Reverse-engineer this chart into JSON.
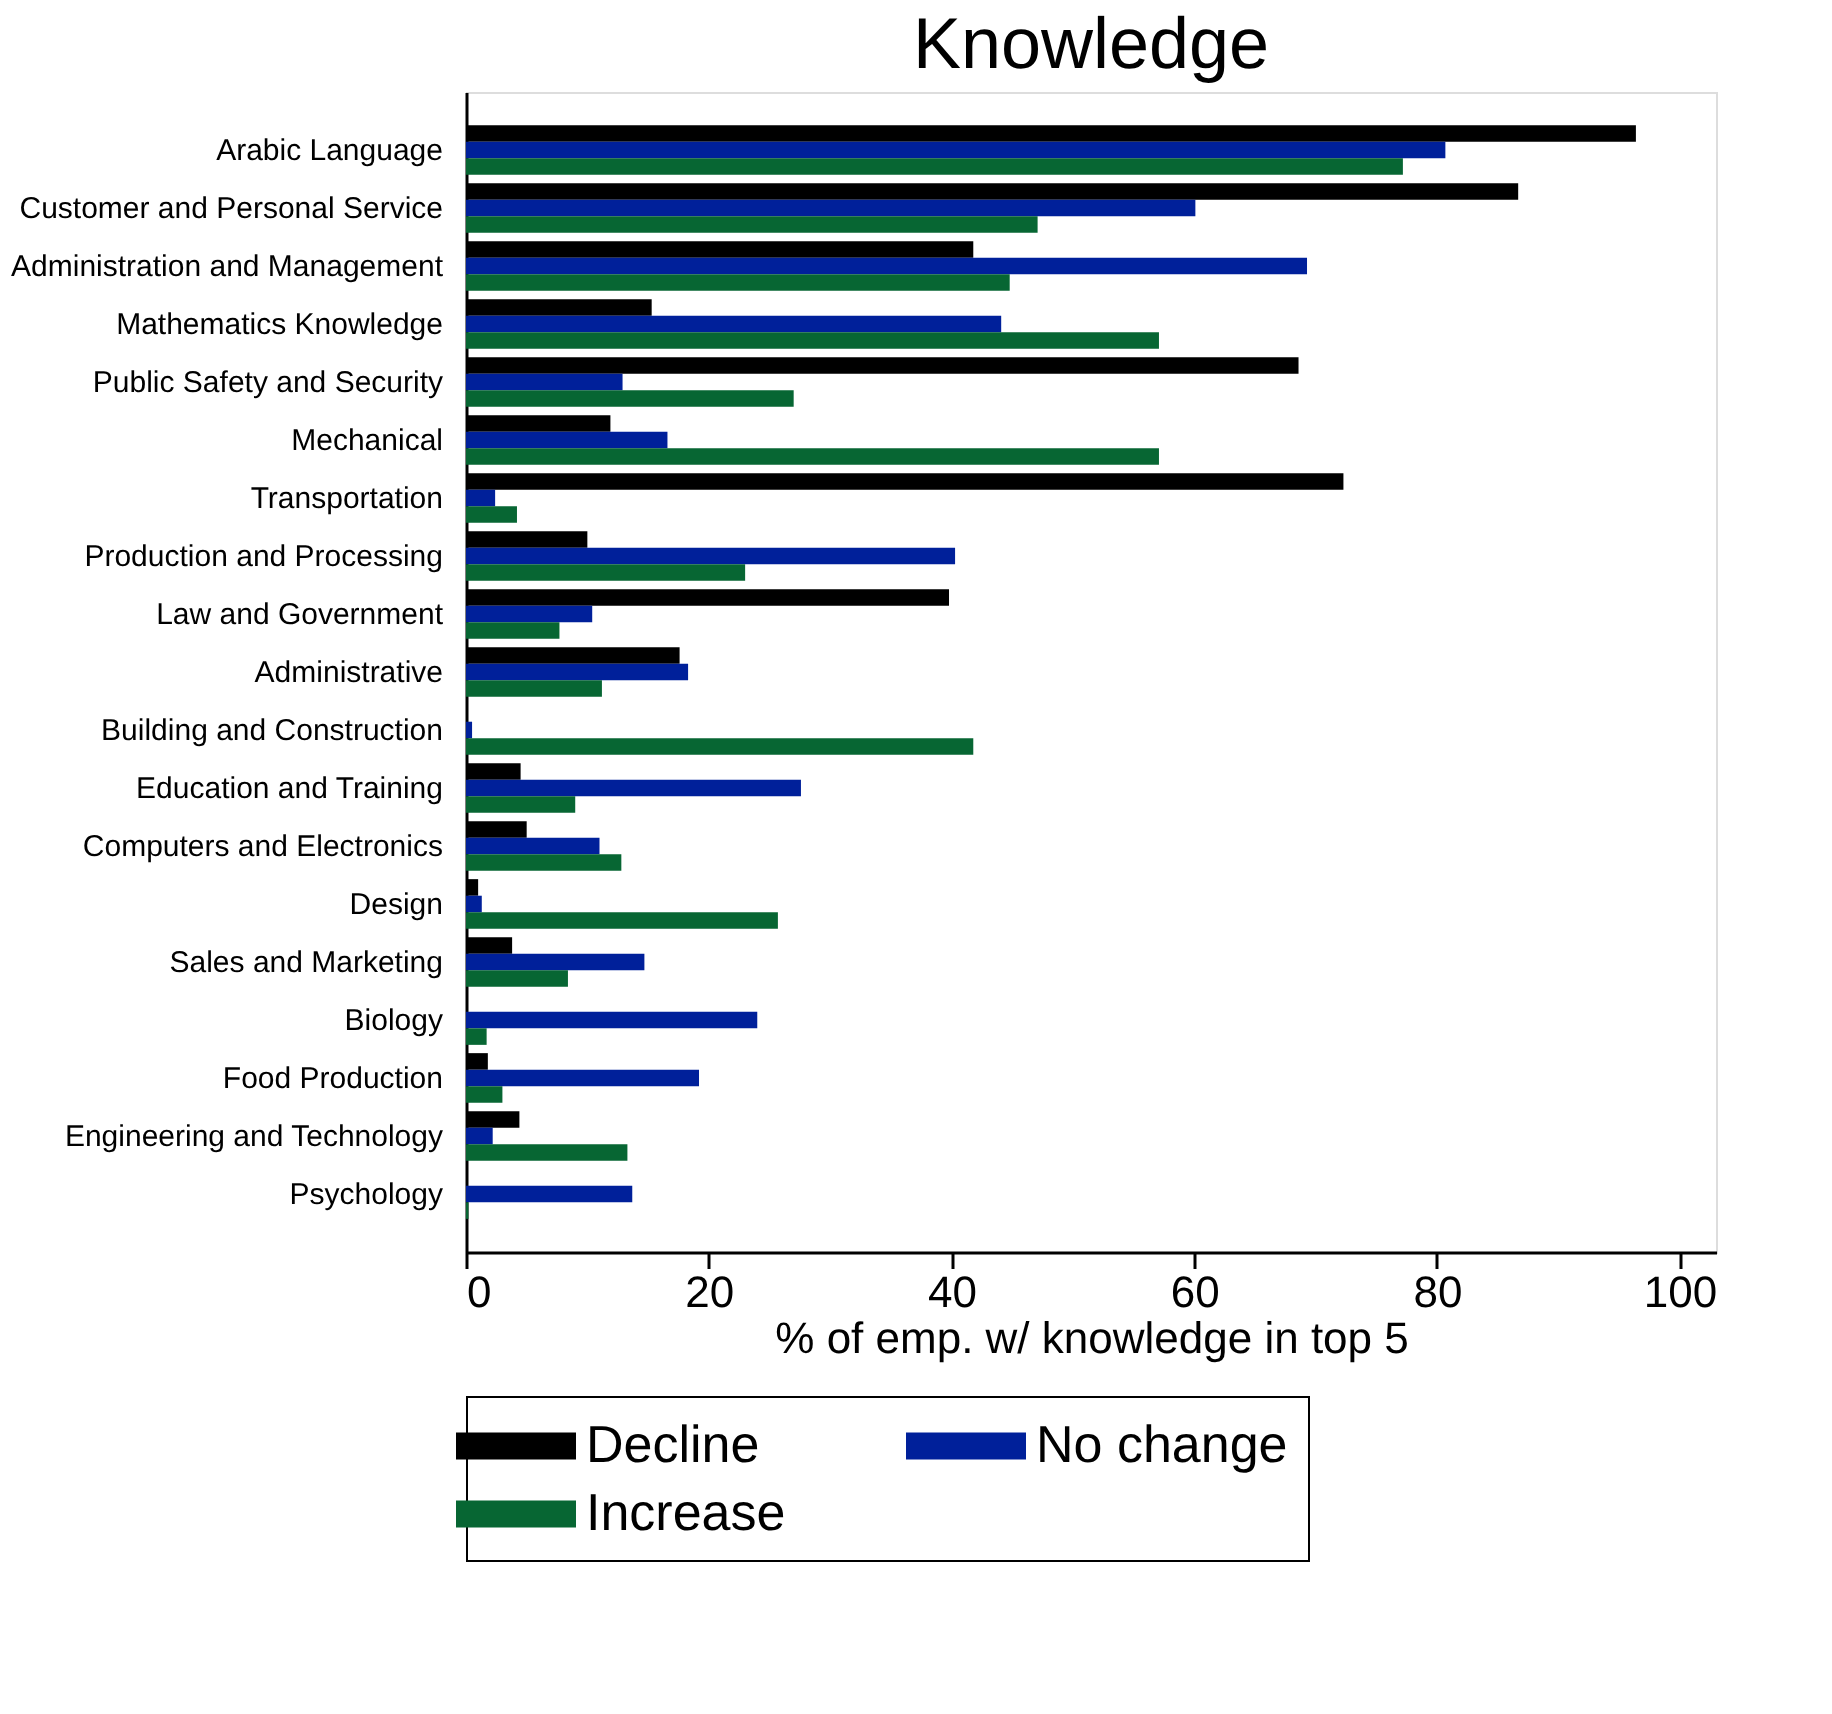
{
  "chart_data": {
    "type": "bar",
    "orientation": "horizontal",
    "title": "Knowledge",
    "xlabel": "% of emp. w/ knowledge in top 5",
    "categories": [
      "Arabic Language",
      "Customer and Personal Service",
      "Administration and Management",
      "Mathematics Knowledge",
      "Public Safety and Security",
      "Mechanical",
      "Transportation",
      "Production and Processing",
      "Law and Government",
      "Administrative",
      "Building and Construction",
      "Education and Training",
      "Computers and Electronics",
      "Design",
      "Sales and Marketing",
      "Biology",
      "Food Production",
      "Engineering and Technology",
      "Psychology"
    ],
    "series": [
      {
        "name": "Decline",
        "color": "#000000",
        "values": [
          96.4,
          86.7,
          41.8,
          15.3,
          68.6,
          11.9,
          72.3,
          10.0,
          39.8,
          17.6,
          null,
          4.5,
          5.0,
          1.0,
          3.8,
          null,
          1.8,
          4.4,
          null
        ]
      },
      {
        "name": "No change",
        "color": "#00209a",
        "values": [
          80.7,
          60.1,
          69.3,
          44.1,
          12.9,
          16.6,
          2.4,
          40.3,
          10.4,
          18.3,
          0.5,
          27.6,
          11.0,
          1.3,
          14.7,
          24.0,
          19.2,
          2.2,
          13.7
        ]
      },
      {
        "name": "Increase",
        "color": "#076633",
        "values": [
          77.2,
          47.1,
          44.8,
          57.1,
          27.0,
          57.1,
          4.2,
          23.0,
          7.7,
          11.2,
          41.8,
          9.0,
          12.8,
          25.7,
          8.4,
          1.7,
          3.0,
          13.3,
          0.2
        ]
      }
    ],
    "xlim": [
      0,
      103
    ],
    "xticks": [
      0,
      20,
      40,
      60,
      80,
      100
    ],
    "grid": false,
    "legend": "bottom"
  }
}
